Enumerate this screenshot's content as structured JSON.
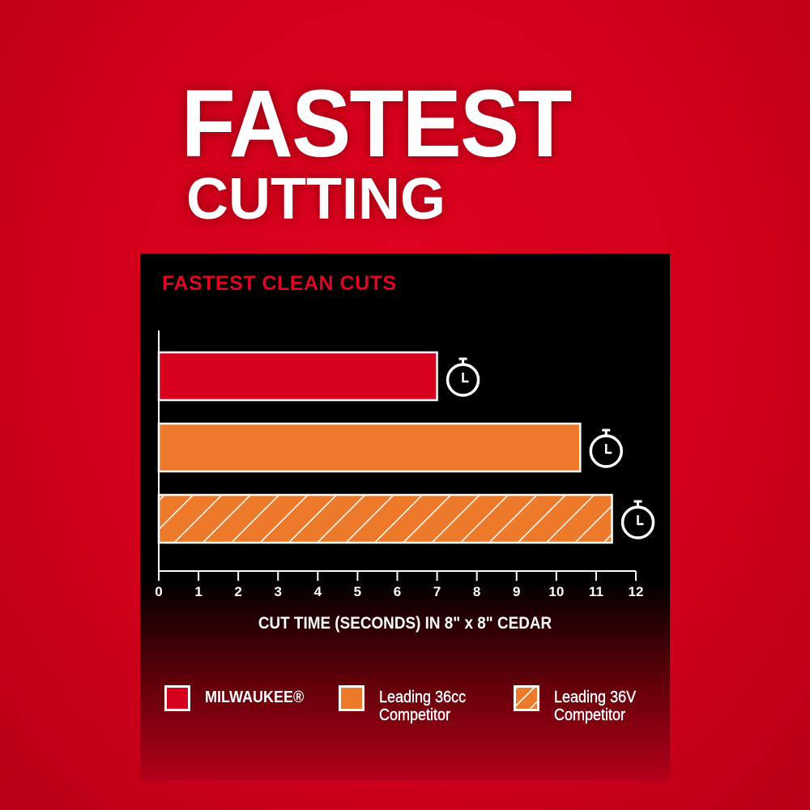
{
  "headline": {
    "line1": "FASTEST",
    "line2": "CUTTING"
  },
  "chart_data": {
    "type": "bar",
    "orientation": "horizontal",
    "title": "FASTEST CLEAN CUTS",
    "xlabel": "CUT TIME (SECONDS) IN 8\" x 8\" CEDAR",
    "ylabel": "",
    "xlim": [
      0,
      12
    ],
    "xticks": [
      "0",
      "1",
      "2",
      "3",
      "4",
      "5",
      "6",
      "7",
      "8",
      "9",
      "10",
      "11",
      "12"
    ],
    "grid": false,
    "legend_position": "bottom",
    "categories": [
      "MILWAUKEE®",
      "Leading 36cc Competitor",
      "Leading 36V Competitor"
    ],
    "values": [
      7.0,
      10.6,
      11.4
    ],
    "colors": [
      "#d6001c",
      "#ec7a2a",
      "#ec7a2a"
    ],
    "patterns": [
      "solid",
      "solid",
      "hatched"
    ],
    "bar_icon": "stopwatch-icon"
  },
  "legend": [
    {
      "line1": "MILWAUKEE®",
      "line2": ""
    },
    {
      "line1": "Leading 36cc",
      "line2": "Competitor"
    },
    {
      "line1": "Leading 36V",
      "line2": "Competitor"
    }
  ]
}
